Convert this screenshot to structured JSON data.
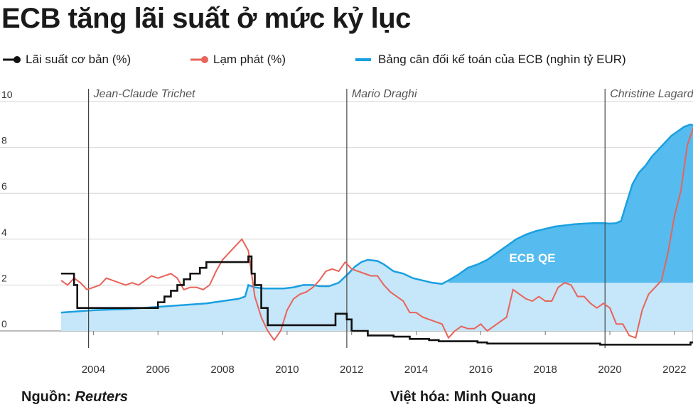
{
  "title": "ECB tăng lãi suất ở mức kỷ lục",
  "legend": [
    {
      "key": "rate",
      "label": "Lãi suất cơ bản (%)",
      "color": "#111111"
    },
    {
      "key": "inflation",
      "label": "Lạm phát (%)",
      "color": "#e8635a"
    },
    {
      "key": "balance",
      "label": "Bảng cân đối kế toán của ECB (nghìn tỷ EUR)",
      "color": "#1aa0e0"
    }
  ],
  "footer": {
    "source_label": "Nguồn:",
    "source_value": "Reuters",
    "credit": "Việt hóa: Minh Quang"
  },
  "chart_data": {
    "type": "line",
    "xlim": [
      2003.0,
      2023.5
    ],
    "ylim": [
      -1.2,
      10.5
    ],
    "x_ticks": [
      2004,
      2006,
      2008,
      2010,
      2012,
      2014,
      2016,
      2018,
      2020,
      2022
    ],
    "y_ticks": [
      0,
      2,
      4,
      6,
      8,
      10
    ],
    "grid": true,
    "legend_position": "top",
    "colors": {
      "balance_fill": "#c6e6f9",
      "qe_fill": "#56bbee",
      "balance_line": "#1aa0e0",
      "inflation": "#e8635a",
      "rate": "#111111"
    },
    "presidents": [
      {
        "name": "Jean-Claude Trichet",
        "x": 2003.85
      },
      {
        "name": "Mario Draghi",
        "x": 2011.85
      },
      {
        "name": "Christine Lagarde",
        "x": 2019.85
      }
    ],
    "annotations": [
      {
        "text": "ECB QE",
        "x": 2017.6,
        "y": 3.0
      }
    ],
    "qe_threshold": 2.1,
    "series": [
      {
        "name": "Bảng cân đối kế toán của ECB (nghìn tỷ EUR)",
        "key": "balance",
        "x": [
          2003.0,
          2003.5,
          2004.0,
          2004.5,
          2005.0,
          2005.5,
          2006.0,
          2006.5,
          2007.0,
          2007.5,
          2008.0,
          2008.5,
          2008.7,
          2008.8,
          2009.0,
          2009.3,
          2009.6,
          2009.9,
          2010.2,
          2010.5,
          2010.8,
          2011.0,
          2011.3,
          2011.6,
          2011.9,
          2012.1,
          2012.3,
          2012.5,
          2012.8,
          2013.0,
          2013.3,
          2013.6,
          2013.9,
          2014.2,
          2014.5,
          2014.8,
          2015.0,
          2015.3,
          2015.6,
          2015.9,
          2016.2,
          2016.5,
          2016.8,
          2017.1,
          2017.4,
          2017.7,
          2018.0,
          2018.3,
          2018.6,
          2018.9,
          2019.2,
          2019.5,
          2019.8,
          2020.0,
          2020.2,
          2020.35,
          2020.5,
          2020.7,
          2020.9,
          2021.1,
          2021.3,
          2021.5,
          2021.7,
          2021.9,
          2022.1,
          2022.3,
          2022.5,
          2022.7
        ],
        "values": [
          0.8,
          0.85,
          0.9,
          0.93,
          0.95,
          1.0,
          1.05,
          1.1,
          1.15,
          1.2,
          1.3,
          1.4,
          1.5,
          2.0,
          1.9,
          1.85,
          1.85,
          1.85,
          1.9,
          2.0,
          2.0,
          1.95,
          1.95,
          2.1,
          2.5,
          2.8,
          3.0,
          3.1,
          3.05,
          2.9,
          2.6,
          2.5,
          2.3,
          2.2,
          2.1,
          2.05,
          2.2,
          2.45,
          2.75,
          2.9,
          3.1,
          3.4,
          3.7,
          4.0,
          4.2,
          4.35,
          4.45,
          4.55,
          4.6,
          4.65,
          4.68,
          4.7,
          4.7,
          4.68,
          4.7,
          4.8,
          5.5,
          6.4,
          6.9,
          7.2,
          7.6,
          7.9,
          8.2,
          8.5,
          8.7,
          8.9,
          9.0,
          8.9
        ]
      },
      {
        "name": "Lạm phát (%)",
        "key": "inflation",
        "x": [
          2003.0,
          2003.2,
          2003.4,
          2003.6,
          2003.8,
          2004.0,
          2004.2,
          2004.4,
          2004.6,
          2004.8,
          2005.0,
          2005.2,
          2005.4,
          2005.6,
          2005.8,
          2006.0,
          2006.2,
          2006.4,
          2006.6,
          2006.8,
          2007.0,
          2007.2,
          2007.4,
          2007.6,
          2007.8,
          2008.0,
          2008.2,
          2008.4,
          2008.6,
          2008.8,
          2009.0,
          2009.2,
          2009.4,
          2009.6,
          2009.8,
          2010.0,
          2010.2,
          2010.4,
          2010.6,
          2010.8,
          2011.0,
          2011.2,
          2011.4,
          2011.6,
          2011.8,
          2012.0,
          2012.2,
          2012.4,
          2012.6,
          2012.8,
          2013.0,
          2013.2,
          2013.4,
          2013.6,
          2013.8,
          2014.0,
          2014.2,
          2014.4,
          2014.6,
          2014.8,
          2015.0,
          2015.2,
          2015.4,
          2015.6,
          2015.8,
          2016.0,
          2016.2,
          2016.4,
          2016.6,
          2016.8,
          2017.0,
          2017.2,
          2017.4,
          2017.6,
          2017.8,
          2018.0,
          2018.2,
          2018.4,
          2018.6,
          2018.8,
          2019.0,
          2019.2,
          2019.4,
          2019.6,
          2019.8,
          2020.0,
          2020.2,
          2020.4,
          2020.6,
          2020.8,
          2021.0,
          2021.2,
          2021.4,
          2021.6,
          2021.8,
          2022.0,
          2022.2,
          2022.4,
          2022.6,
          2022.8
        ],
        "values": [
          2.2,
          2.0,
          2.3,
          2.1,
          1.8,
          1.9,
          2.0,
          2.3,
          2.2,
          2.1,
          2.0,
          2.1,
          2.0,
          2.2,
          2.4,
          2.3,
          2.4,
          2.5,
          2.3,
          1.8,
          1.9,
          1.9,
          1.8,
          2.0,
          2.6,
          3.1,
          3.4,
          3.7,
          4.0,
          3.5,
          1.5,
          0.6,
          0.0,
          -0.4,
          0.0,
          0.9,
          1.4,
          1.6,
          1.7,
          1.9,
          2.2,
          2.6,
          2.7,
          2.6,
          3.0,
          2.7,
          2.6,
          2.5,
          2.4,
          2.4,
          2.0,
          1.7,
          1.5,
          1.3,
          0.8,
          0.8,
          0.6,
          0.5,
          0.4,
          0.3,
          -0.3,
          0.0,
          0.2,
          0.1,
          0.1,
          0.3,
          0.0,
          0.2,
          0.4,
          0.6,
          1.8,
          1.6,
          1.4,
          1.3,
          1.5,
          1.3,
          1.3,
          1.9,
          2.1,
          2.0,
          1.5,
          1.5,
          1.2,
          1.0,
          1.2,
          1.0,
          0.3,
          0.3,
          -0.2,
          -0.3,
          0.9,
          1.6,
          1.9,
          2.2,
          3.4,
          5.0,
          6.1,
          8.1,
          8.9,
          9.1
        ]
      },
      {
        "name": "Lãi suất cơ bản (%)",
        "key": "rate",
        "x": [
          2003.0,
          2003.4,
          2003.5,
          2004.0,
          2005.0,
          2005.9,
          2006.0,
          2006.2,
          2006.4,
          2006.6,
          2006.8,
          2007.0,
          2007.3,
          2007.5,
          2008.5,
          2008.8,
          2008.9,
          2009.0,
          2009.2,
          2009.4,
          2011.3,
          2011.5,
          2011.85,
          2012.0,
          2012.5,
          2013.3,
          2013.8,
          2014.4,
          2014.7,
          2015.9,
          2016.2,
          2019.7,
          2022.5,
          2022.6,
          2022.75
        ],
        "values": [
          2.5,
          2.0,
          1.0,
          1.0,
          1.0,
          1.0,
          1.25,
          1.5,
          1.75,
          2.0,
          2.25,
          2.5,
          2.75,
          3.0,
          3.0,
          3.25,
          2.5,
          2.0,
          1.0,
          0.25,
          0.25,
          0.75,
          0.5,
          0.0,
          -0.2,
          -0.25,
          -0.35,
          -0.4,
          -0.45,
          -0.5,
          -0.55,
          -0.6,
          -0.5,
          0.0,
          0.75
        ]
      }
    ]
  }
}
